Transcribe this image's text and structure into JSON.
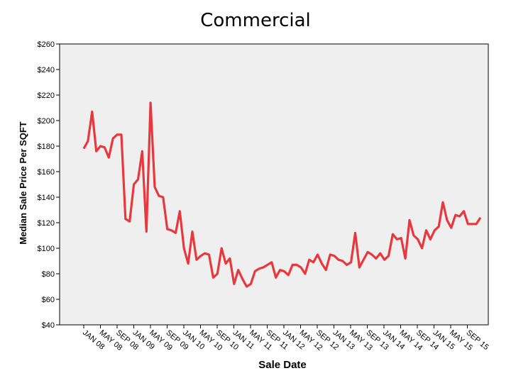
{
  "chart_data": {
    "type": "line",
    "title": "Commercial",
    "xlabel": "Sale Date",
    "ylabel": "Median Sale Price Per SQFT",
    "ylim": [
      40,
      260
    ],
    "yticks": [
      40,
      60,
      80,
      100,
      120,
      140,
      160,
      180,
      200,
      220,
      240,
      260
    ],
    "ytick_labels": [
      "$40",
      "$60",
      "$80",
      "$100",
      "$120",
      "$140",
      "$160",
      "$180",
      "$200",
      "$220",
      "$240",
      "$260"
    ],
    "x_tick_labels": [
      "JAN 08",
      "MAY 08",
      "SEP 08",
      "JAN 09",
      "MAY 09",
      "SEP 09",
      "JAN 10",
      "MAY 10",
      "SEP 10",
      "JAN 11",
      "MAY 11",
      "SEP 11",
      "JAN 12",
      "MAY 12",
      "SEP 12",
      "JAN 13",
      "MAY 13",
      "SEP 13",
      "JAN 14",
      "MAY 14",
      "SEP 14",
      "JAN 15",
      "MAY 15",
      "SEP 15"
    ],
    "grid": false,
    "line_color": "#e8383d",
    "background_color": "#efefef",
    "series": [
      {
        "values": [
          178,
          184,
          207,
          176,
          180,
          179,
          171,
          186,
          189,
          189,
          123,
          121,
          150,
          154,
          176,
          113,
          214,
          148,
          141,
          140,
          115,
          114,
          112,
          129,
          100,
          88,
          113,
          91,
          94,
          96,
          95,
          77,
          80,
          100,
          88,
          92,
          72,
          83,
          76,
          70,
          72,
          82,
          84,
          85,
          87,
          89,
          77,
          83,
          82,
          79,
          87,
          87,
          85,
          80,
          91,
          89,
          95,
          88,
          83,
          95,
          94,
          91,
          90,
          87,
          89,
          112,
          85,
          91,
          97,
          95,
          92,
          96,
          91,
          94,
          111,
          107,
          108,
          92,
          122,
          110,
          107,
          100,
          114,
          107,
          114,
          117,
          136,
          122,
          116,
          126,
          125,
          129,
          119,
          119,
          119,
          124
        ]
      }
    ]
  }
}
